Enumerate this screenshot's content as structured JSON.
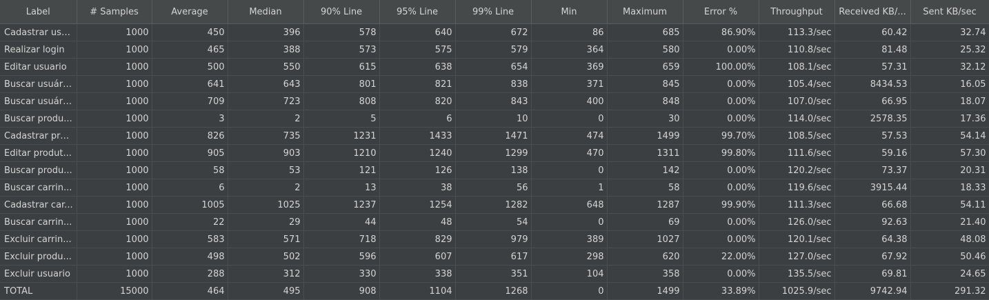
{
  "columns": [
    "Label",
    "# Samples",
    "Average",
    "Median",
    "90% Line",
    "95% Line",
    "99% Line",
    "Min",
    "Maximum",
    "Error %",
    "Throughput",
    "Received KB/...",
    "Sent KB/sec"
  ],
  "rows": [
    [
      "Cadastrar usu...",
      "1000",
      "450",
      "396",
      "578",
      "640",
      "672",
      "86",
      "685",
      "86.90%",
      "113.3/sec",
      "60.42",
      "32.74"
    ],
    [
      "Realizar login",
      "1000",
      "465",
      "388",
      "573",
      "575",
      "579",
      "364",
      "580",
      "0.00%",
      "110.8/sec",
      "81.48",
      "25.32"
    ],
    [
      "Editar usuario",
      "1000",
      "500",
      "550",
      "615",
      "638",
      "654",
      "369",
      "659",
      "100.00%",
      "108.1/sec",
      "57.31",
      "32.12"
    ],
    [
      "Buscar usuári...",
      "1000",
      "641",
      "643",
      "801",
      "821",
      "838",
      "371",
      "845",
      "0.00%",
      "105.4/sec",
      "8434.53",
      "16.05"
    ],
    [
      "Buscar usuári...",
      "1000",
      "709",
      "723",
      "808",
      "820",
      "843",
      "400",
      "848",
      "0.00%",
      "107.0/sec",
      "66.95",
      "18.07"
    ],
    [
      "Buscar produ...",
      "1000",
      "3",
      "2",
      "5",
      "6",
      "10",
      "0",
      "30",
      "0.00%",
      "114.0/sec",
      "2578.35",
      "17.36"
    ],
    [
      "Cadastrar pro...",
      "1000",
      "826",
      "735",
      "1231",
      "1433",
      "1471",
      "474",
      "1499",
      "99.70%",
      "108.5/sec",
      "57.53",
      "54.14"
    ],
    [
      "Editar produt...",
      "1000",
      "905",
      "903",
      "1210",
      "1240",
      "1299",
      "470",
      "1311",
      "99.80%",
      "111.6/sec",
      "59.16",
      "57.30"
    ],
    [
      "Buscar produ...",
      "1000",
      "58",
      "53",
      "121",
      "126",
      "138",
      "0",
      "142",
      "0.00%",
      "120.2/sec",
      "73.37",
      "20.31"
    ],
    [
      "Buscar carrin...",
      "1000",
      "6",
      "2",
      "13",
      "38",
      "56",
      "1",
      "58",
      "0.00%",
      "119.6/sec",
      "3915.44",
      "18.33"
    ],
    [
      "Cadastrar car...",
      "1000",
      "1005",
      "1025",
      "1237",
      "1254",
      "1282",
      "648",
      "1287",
      "99.90%",
      "111.3/sec",
      "66.68",
      "54.11"
    ],
    [
      "Buscar carrin...",
      "1000",
      "22",
      "29",
      "44",
      "48",
      "54",
      "0",
      "69",
      "0.00%",
      "126.0/sec",
      "92.63",
      "21.40"
    ],
    [
      "Excluir carrin...",
      "1000",
      "583",
      "571",
      "718",
      "829",
      "979",
      "389",
      "1027",
      "0.00%",
      "120.1/sec",
      "64.38",
      "48.08"
    ],
    [
      "Excluir produ...",
      "1000",
      "498",
      "502",
      "596",
      "607",
      "617",
      "298",
      "620",
      "22.00%",
      "127.0/sec",
      "67.92",
      "50.46"
    ],
    [
      "Excluir usuario",
      "1000",
      "288",
      "312",
      "330",
      "338",
      "351",
      "104",
      "358",
      "0.00%",
      "135.5/sec",
      "69.81",
      "24.65"
    ],
    [
      "TOTAL",
      "15000",
      "464",
      "495",
      "908",
      "1104",
      "1268",
      "0",
      "1499",
      "33.89%",
      "1025.9/sec",
      "9742.94",
      "291.32"
    ]
  ]
}
